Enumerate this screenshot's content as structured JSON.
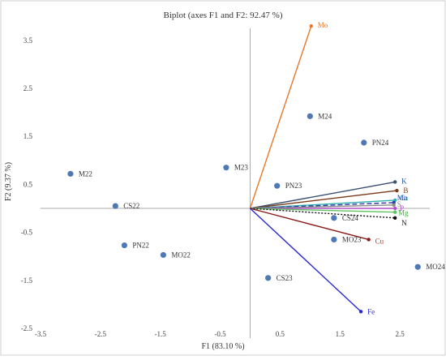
{
  "chart_data": {
    "type": "scatter",
    "title": "Biplot (axes F1 and F2: 92.47 %)",
    "xlabel": "F1 (83.10 %)",
    "ylabel": "F2 (9.37 %)",
    "xlim": [
      -3.5,
      3.0
    ],
    "ylim": [
      -2.5,
      3.75
    ],
    "xticks": [
      {
        "v": -3.5,
        "label": "-3.5"
      },
      {
        "v": -2.5,
        "label": "-2.5"
      },
      {
        "v": -1.5,
        "label": "-1.5"
      },
      {
        "v": -0.5,
        "label": "-0.5"
      },
      {
        "v": 0.5,
        "label": "0.5"
      },
      {
        "v": 1.5,
        "label": "1.5"
      },
      {
        "v": 2.5,
        "label": "2.5"
      }
    ],
    "yticks": [
      {
        "v": 3.5,
        "label": "3.5"
      },
      {
        "v": 2.5,
        "label": "2.5"
      },
      {
        "v": 1.5,
        "label": "1.5"
      },
      {
        "v": 0.5,
        "label": "0.5"
      },
      {
        "v": -0.5,
        "label": "-0.5"
      },
      {
        "v": -1.5,
        "label": "-1.5"
      },
      {
        "v": -2.5,
        "label": "-2.5"
      }
    ],
    "observations": [
      {
        "label": "M22",
        "x": -3.0,
        "y": 0.72
      },
      {
        "label": "CS22",
        "x": -2.25,
        "y": 0.05
      },
      {
        "label": "PN22",
        "x": -2.1,
        "y": -0.77
      },
      {
        "label": "MO22",
        "x": -1.45,
        "y": -0.97
      },
      {
        "label": "M23",
        "x": -0.4,
        "y": 0.85
      },
      {
        "label": "PN23",
        "x": 0.45,
        "y": 0.47
      },
      {
        "label": "M24",
        "x": 1.0,
        "y": 1.92
      },
      {
        "label": "PN24",
        "x": 1.9,
        "y": 1.37
      },
      {
        "label": "CS24",
        "x": 1.4,
        "y": -0.2
      },
      {
        "label": "MO23",
        "x": 1.4,
        "y": -0.65
      },
      {
        "label": "CS23",
        "x": 0.3,
        "y": -1.45
      },
      {
        "label": "MO24",
        "x": 2.8,
        "y": -1.22
      }
    ],
    "variables": [
      {
        "label": "Mo",
        "x": 1.02,
        "y": 3.8,
        "color": "#e8782a",
        "dash": "",
        "labelColor": "#e8782a"
      },
      {
        "label": "K",
        "x": 2.42,
        "y": 0.55,
        "color": "#3b4f70",
        "dash": "",
        "labelColor": "#2b5b9a"
      },
      {
        "label": "B",
        "x": 2.45,
        "y": 0.37,
        "color": "#7b3a1a",
        "dash": "",
        "labelColor": "#7b3a1a"
      },
      {
        "label": "Ca",
        "x": 2.42,
        "y": 0.17,
        "color": "#2fb0b0",
        "dash": "",
        "labelColor": "#2fb0b0"
      },
      {
        "label": "Mn",
        "x": 2.4,
        "y": 0.12,
        "color": "#2a3aa8",
        "dash": "6,3",
        "labelColor": "#2a3aa8"
      },
      {
        "label": "S",
        "x": 2.4,
        "y": 0.07,
        "color": "#8a8a8a",
        "dash": "",
        "labelColor": "#8a8a8a"
      },
      {
        "label": "P",
        "x": 2.42,
        "y": 0.0,
        "color": "#b04fc8",
        "dash": "",
        "labelColor": "#b04fc8"
      },
      {
        "label": "Mg",
        "x": 2.42,
        "y": -0.08,
        "color": "#5fc35f",
        "dash": "",
        "labelColor": "#3aa83a"
      },
      {
        "label": "N",
        "x": 2.42,
        "y": -0.2,
        "color": "#111111",
        "dash": "2,2",
        "labelColor": "#111111"
      },
      {
        "label": "Cu",
        "x": 1.98,
        "y": -0.65,
        "color": "#8b1a1a",
        "dash": "",
        "labelColor": "#c0392b"
      },
      {
        "label": "Fe",
        "x": 1.85,
        "y": -2.15,
        "color": "#2a2ad0",
        "dash": "",
        "labelColor": "#2a2ad0"
      }
    ],
    "grid": false,
    "legend": "none"
  },
  "colors": {
    "point": "#4e79b5",
    "point_label": "#333333",
    "axis": "#aaaaaa",
    "frame": "#cfcfcf"
  }
}
